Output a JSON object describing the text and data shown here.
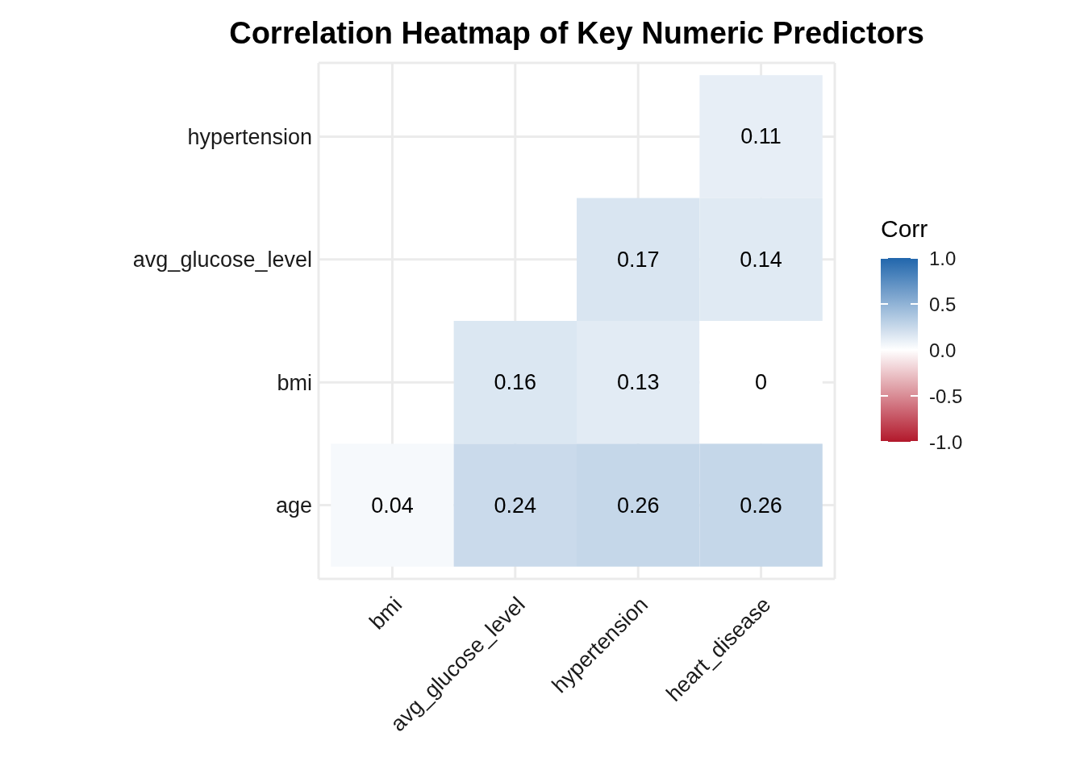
{
  "chart_data": {
    "type": "heatmap",
    "title": "Correlation Heatmap of Key Numeric Predictors",
    "categories": [
      "bmi",
      "avg_glucose_level",
      "hypertension",
      "heart_disease"
    ],
    "y_categories": [
      "hypertension",
      "avg_glucose_level",
      "bmi",
      "age"
    ],
    "cells": [
      [
        null,
        null,
        null,
        0.11
      ],
      [
        null,
        null,
        0.17,
        0.14
      ],
      [
        null,
        0.16,
        0.13,
        0
      ],
      [
        0.04,
        0.24,
        0.26,
        0.26
      ]
    ],
    "clabel": "Corr",
    "clim": [
      -1,
      1
    ],
    "cticks": [
      {
        "value": -1,
        "label": "-1.0"
      },
      {
        "value": -0.5,
        "label": "-0.5"
      },
      {
        "value": 0,
        "label": "0.0"
      },
      {
        "value": 0.5,
        "label": "0.5"
      },
      {
        "value": 1,
        "label": "1.0"
      }
    ],
    "data_labels": true,
    "grid": true
  }
}
